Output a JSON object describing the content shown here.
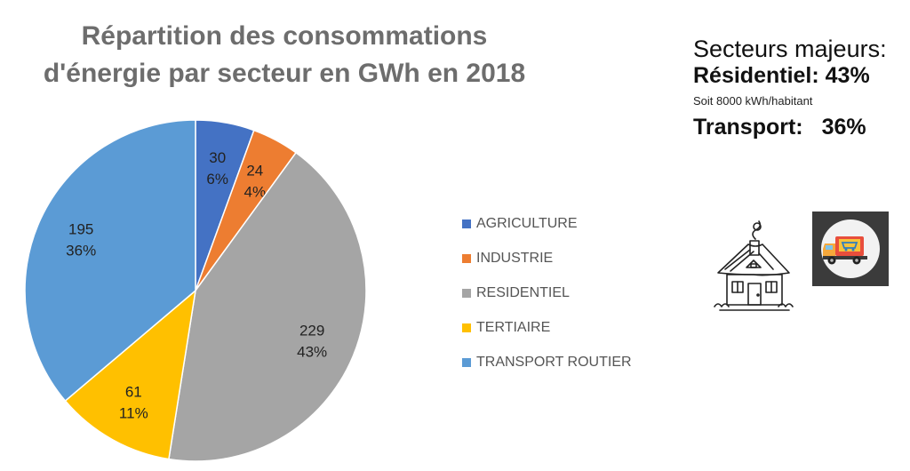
{
  "chart_data": {
    "type": "pie",
    "title_lines": [
      "Répartition des consommations",
      "d'énergie par secteur en GWh en 2018"
    ],
    "slices": [
      {
        "name": "AGRICULTURE",
        "value": 30,
        "percent_label": "6%",
        "color": "#4472c4"
      },
      {
        "name": "INDUSTRIE",
        "value": 24,
        "percent_label": "4%",
        "color": "#ed7d31"
      },
      {
        "name": "RESIDENTIEL",
        "value": 229,
        "percent_label": "43%",
        "color": "#a5a5a5"
      },
      {
        "name": "TERTIAIRE",
        "value": 61,
        "percent_label": "11%",
        "color": "#ffc000"
      },
      {
        "name": "TRANSPORT ROUTIER",
        "value": 195,
        "percent_label": "36%",
        "color": "#5b9bd5"
      }
    ],
    "legend_position": "right"
  },
  "side_panel": {
    "heading": "Secteurs majeurs:",
    "residential_label": "Résidentiel:",
    "residential_pct": "43%",
    "residential_note": "Soit 8000 kWh/habitant",
    "transport_label": "Transport:",
    "transport_pct": "36%"
  },
  "icons": {
    "house": "house-sketch-icon",
    "truck": "delivery-truck-icon"
  }
}
